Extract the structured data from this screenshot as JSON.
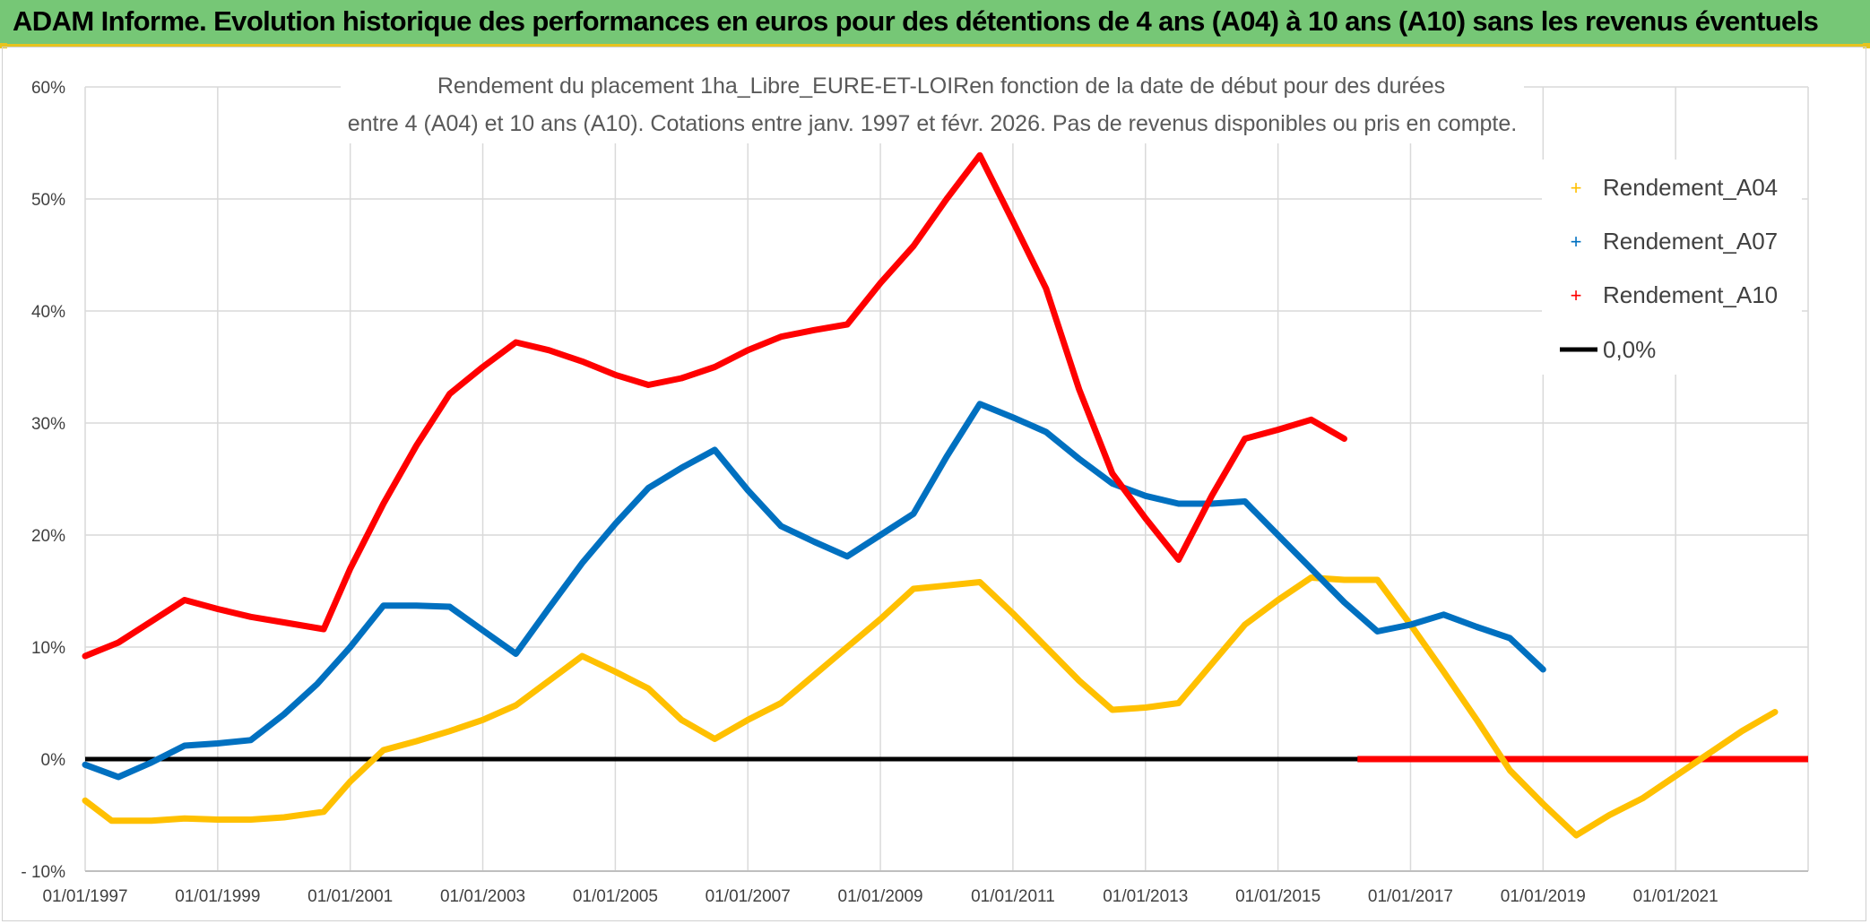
{
  "header": {
    "title": "ADAM Informe. Evolution historique des performances en euros pour des détentions de 4 ans (A04) à 10 ans (A10) sans les revenus éventuels"
  },
  "colors": {
    "header_bg": "#76c776",
    "accent": "#e8c31e",
    "A04": "#ffc000",
    "A07": "#0070c0",
    "A10": "#ff0000",
    "zero": "#000000",
    "grid": "#d9d9d9"
  },
  "chart_data": {
    "type": "line",
    "title_line1": "Rendement du placement 1ha_Libre_EURE-ET-LOIRen fonction de la date de début pour des durées",
    "title_line2": "entre 4 (A04) et 10 ans (A10). Cotations entre janv. 1997 et févr. 2026. Pas de revenus disponibles ou pris en compte.",
    "xlim": [
      1997.0,
      2023.0
    ],
    "ylim": [
      -10,
      60
    ],
    "y_ticks": [
      60,
      50,
      40,
      30,
      20,
      10,
      0,
      -10
    ],
    "y_tick_labels": [
      "60%",
      "50%",
      "40%",
      "30%",
      "20%",
      "10%",
      "0%",
      "- 10%"
    ],
    "x_ticks": [
      1997,
      1999,
      2001,
      2003,
      2005,
      2007,
      2009,
      2011,
      2013,
      2015,
      2017,
      2019,
      2021
    ],
    "x_tick_labels": [
      "01/01/1997",
      "01/01/1999",
      "01/01/2001",
      "01/01/2003",
      "01/01/2005",
      "01/01/2007",
      "01/01/2009",
      "01/01/2011",
      "01/01/2013",
      "01/01/2015",
      "01/01/2017",
      "01/01/2019",
      "01/01/2021"
    ],
    "series": [
      {
        "name": "Rendement_A04",
        "key": "A04",
        "points": [
          [
            1997.0,
            -3.7
          ],
          [
            1997.4,
            -5.5
          ],
          [
            1998.0,
            -5.5
          ],
          [
            1998.5,
            -5.3
          ],
          [
            1999.0,
            -5.4
          ],
          [
            1999.5,
            -5.4
          ],
          [
            2000.0,
            -5.2
          ],
          [
            2000.6,
            -4.7
          ],
          [
            2001.0,
            -2.0
          ],
          [
            2001.5,
            0.8
          ],
          [
            2002.0,
            1.6
          ],
          [
            2002.5,
            2.5
          ],
          [
            2003.0,
            3.5
          ],
          [
            2003.5,
            4.8
          ],
          [
            2004.0,
            7.0
          ],
          [
            2004.5,
            9.2
          ],
          [
            2005.0,
            7.8
          ],
          [
            2005.5,
            6.3
          ],
          [
            2006.0,
            3.5
          ],
          [
            2006.5,
            1.8
          ],
          [
            2007.0,
            3.5
          ],
          [
            2007.5,
            5.0
          ],
          [
            2008.0,
            7.5
          ],
          [
            2008.5,
            10.0
          ],
          [
            2009.0,
            12.5
          ],
          [
            2009.5,
            15.2
          ],
          [
            2010.0,
            15.5
          ],
          [
            2010.5,
            15.8
          ],
          [
            2011.0,
            13.0
          ],
          [
            2011.5,
            10.0
          ],
          [
            2012.0,
            7.0
          ],
          [
            2012.5,
            4.4
          ],
          [
            2013.0,
            4.6
          ],
          [
            2013.5,
            5.0
          ],
          [
            2014.0,
            8.5
          ],
          [
            2014.5,
            12.0
          ],
          [
            2015.0,
            14.2
          ],
          [
            2015.5,
            16.2
          ],
          [
            2016.0,
            16.0
          ],
          [
            2016.5,
            16.0
          ],
          [
            2017.0,
            12.0
          ],
          [
            2017.5,
            7.8
          ],
          [
            2018.0,
            3.5
          ],
          [
            2018.5,
            -1.0
          ],
          [
            2019.0,
            -4.0
          ],
          [
            2019.5,
            -6.8
          ],
          [
            2020.0,
            -5.0
          ],
          [
            2020.5,
            -3.5
          ],
          [
            2021.0,
            -1.5
          ],
          [
            2021.5,
            0.5
          ],
          [
            2022.0,
            2.5
          ],
          [
            2022.5,
            4.2
          ]
        ]
      },
      {
        "name": "Rendement_A07",
        "key": "A07",
        "points": [
          [
            1997.0,
            -0.5
          ],
          [
            1997.5,
            -1.6
          ],
          [
            1998.0,
            -0.3
          ],
          [
            1998.5,
            1.2
          ],
          [
            1999.0,
            1.4
          ],
          [
            1999.5,
            1.7
          ],
          [
            2000.0,
            4.0
          ],
          [
            2000.5,
            6.7
          ],
          [
            2001.0,
            10.0
          ],
          [
            2001.5,
            13.7
          ],
          [
            2002.0,
            13.7
          ],
          [
            2002.5,
            13.6
          ],
          [
            2003.0,
            11.5
          ],
          [
            2003.5,
            9.4
          ],
          [
            2004.0,
            13.5
          ],
          [
            2004.5,
            17.5
          ],
          [
            2005.0,
            21.0
          ],
          [
            2005.5,
            24.2
          ],
          [
            2006.0,
            26.0
          ],
          [
            2006.5,
            27.6
          ],
          [
            2007.0,
            24.0
          ],
          [
            2007.5,
            20.8
          ],
          [
            2008.0,
            19.4
          ],
          [
            2008.5,
            18.1
          ],
          [
            2009.0,
            20.0
          ],
          [
            2009.5,
            21.9
          ],
          [
            2010.0,
            27.0
          ],
          [
            2010.5,
            31.7
          ],
          [
            2011.0,
            30.5
          ],
          [
            2011.5,
            29.2
          ],
          [
            2012.0,
            26.8
          ],
          [
            2012.5,
            24.6
          ],
          [
            2013.0,
            23.5
          ],
          [
            2013.5,
            22.8
          ],
          [
            2014.0,
            22.8
          ],
          [
            2014.5,
            23.0
          ],
          [
            2015.0,
            20.0
          ],
          [
            2015.5,
            17.0
          ],
          [
            2016.0,
            14.0
          ],
          [
            2016.5,
            11.4
          ],
          [
            2017.0,
            12.0
          ],
          [
            2017.5,
            12.9
          ],
          [
            2018.0,
            11.8
          ],
          [
            2018.5,
            10.8
          ],
          [
            2019.0,
            8.0
          ]
        ]
      },
      {
        "name": "Rendement_A10",
        "key": "A10",
        "points": [
          [
            1997.0,
            9.2
          ],
          [
            1997.5,
            10.4
          ],
          [
            1998.0,
            12.3
          ],
          [
            1998.5,
            14.2
          ],
          [
            1999.0,
            13.4
          ],
          [
            1999.5,
            12.7
          ],
          [
            2000.0,
            12.2
          ],
          [
            2000.6,
            11.6
          ],
          [
            2001.0,
            17.0
          ],
          [
            2001.5,
            22.8
          ],
          [
            2002.0,
            28.0
          ],
          [
            2002.5,
            32.6
          ],
          [
            2003.0,
            35.0
          ],
          [
            2003.5,
            37.2
          ],
          [
            2004.0,
            36.5
          ],
          [
            2004.5,
            35.5
          ],
          [
            2005.0,
            34.3
          ],
          [
            2005.5,
            33.4
          ],
          [
            2006.0,
            34.0
          ],
          [
            2006.5,
            35.0
          ],
          [
            2007.0,
            36.5
          ],
          [
            2007.5,
            37.7
          ],
          [
            2008.0,
            38.3
          ],
          [
            2008.5,
            38.8
          ],
          [
            2009.0,
            42.5
          ],
          [
            2009.5,
            45.8
          ],
          [
            2010.0,
            50.0
          ],
          [
            2010.5,
            53.9
          ],
          [
            2011.0,
            48.0
          ],
          [
            2011.5,
            42.0
          ],
          [
            2012.0,
            33.0
          ],
          [
            2012.5,
            25.5
          ],
          [
            2013.0,
            21.5
          ],
          [
            2013.5,
            17.8
          ],
          [
            2014.0,
            23.5
          ],
          [
            2014.5,
            28.6
          ],
          [
            2015.0,
            29.4
          ],
          [
            2015.5,
            30.3
          ],
          [
            2016.0,
            28.6
          ]
        ]
      },
      {
        "name": "0,0%",
        "key": "zero",
        "points": [
          [
            1997.0,
            0.0
          ],
          [
            2023.0,
            0.0
          ]
        ]
      }
    ],
    "a10_zero_tail": [
      [
        2016.2,
        0.0
      ],
      [
        2023.0,
        0.0
      ]
    ],
    "legend_position": "top-right",
    "legend": [
      "Rendement_A04",
      "Rendement_A07",
      "Rendement_A10",
      "0,0%"
    ]
  }
}
